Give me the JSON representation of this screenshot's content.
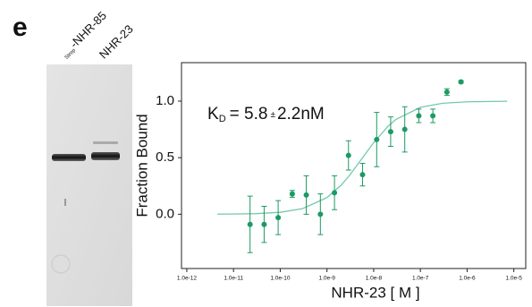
{
  "panel_label": "e",
  "gel": {
    "lane_labels": [
      {
        "prefix": "Strep",
        "text": "-NHR-85"
      },
      {
        "prefix": null,
        "text": "NHR-23"
      }
    ]
  },
  "chart_data": {
    "type": "scatter",
    "log_x": true,
    "x_label": "NHR-23 [ M ]",
    "y_label": "Fraction Bound",
    "annotation": {
      "symbol": "K",
      "subscript": "D",
      "value": "= 5.8",
      "pm": "±",
      "error": "2.2nM"
    },
    "xlim": [
      7.7e-13,
      1.8e-05
    ],
    "ylim": [
      -0.48,
      1.34
    ],
    "xticks": [
      {
        "value": 1e-12,
        "label": "1.0e-12"
      },
      {
        "value": 1e-11,
        "label": "1.0e-11"
      },
      {
        "value": 1e-10,
        "label": "1.0e-10"
      },
      {
        "value": 1e-09,
        "label": "1.0e-9"
      },
      {
        "value": 1e-08,
        "label": "1.0e-8"
      },
      {
        "value": 1e-07,
        "label": "1.0e-7"
      },
      {
        "value": 1e-06,
        "label": "1.0e-6"
      },
      {
        "value": 1e-05,
        "label": "1.0e-5"
      }
    ],
    "yticks": [
      {
        "value": 0,
        "label": "0.0"
      },
      {
        "value": 0.5,
        "label": "0.5"
      },
      {
        "value": 1,
        "label": "1.0"
      }
    ],
    "points": {
      "color": "#1d9a63",
      "x": [
        2.26e-11,
        4.52e-11,
        9.03e-11,
        1.81e-10,
        3.61e-10,
        7.23e-10,
        1.45e-09,
        2.89e-09,
        5.78e-09,
        1.16e-08,
        2.31e-08,
        4.63e-08,
        9.25e-08,
        1.85e-07,
        3.7e-07,
        7.4e-07
      ],
      "values": [
        -0.09,
        -0.09,
        -0.03,
        0.18,
        0.17,
        0.0,
        0.19,
        0.52,
        0.35,
        0.66,
        0.73,
        0.75,
        0.87,
        0.87,
        1.08,
        1.17
      ],
      "errors": [
        0.25,
        0.16,
        0.15,
        0.03,
        0.17,
        0.18,
        0.15,
        0.13,
        0.1,
        0.24,
        0.13,
        0.2,
        0.06,
        0.06,
        0.03,
        0.01
      ]
    },
    "fit": {
      "color": "#74c9aa",
      "x": [
        4.5e-12,
        1e-11,
        3e-11,
        1e-10,
        3e-10,
        1e-09,
        2e-09,
        3e-09,
        5.8e-09,
        1e-08,
        2e-08,
        3e-08,
        1e-07,
        3e-07,
        1e-06,
        7.2e-06
      ],
      "values": [
        0.001,
        0.002,
        0.005,
        0.017,
        0.049,
        0.147,
        0.256,
        0.34,
        0.5,
        0.633,
        0.775,
        0.838,
        0.945,
        0.981,
        0.994,
        0.999
      ]
    }
  }
}
